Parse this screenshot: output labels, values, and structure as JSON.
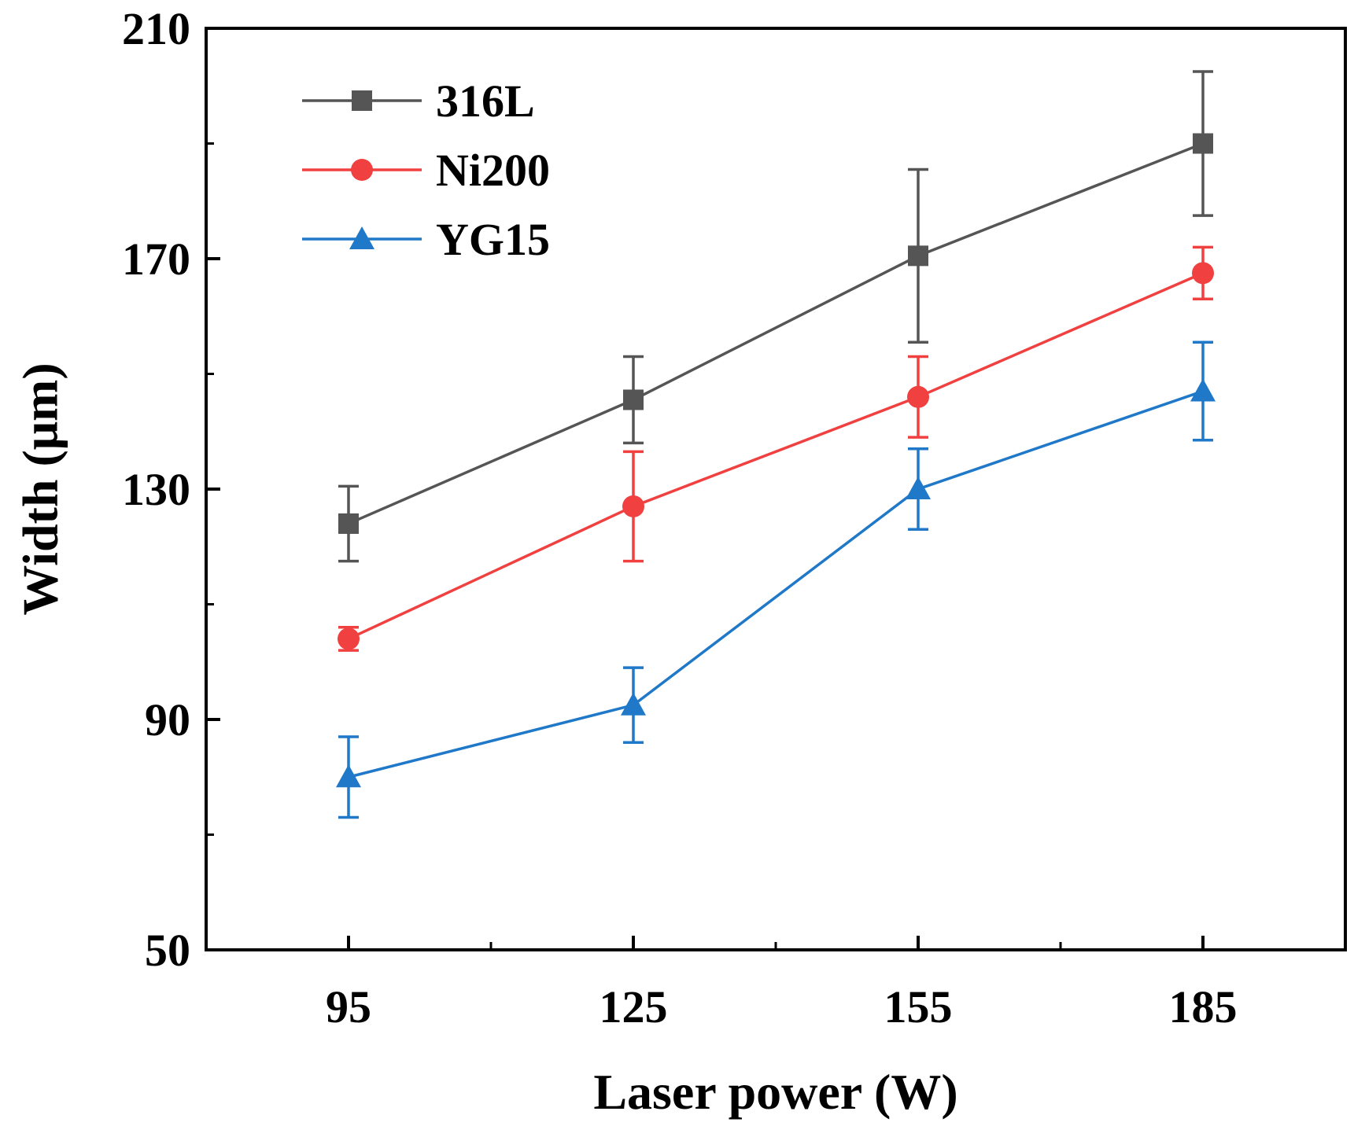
{
  "chart_data": {
    "type": "line",
    "xlabel": "Laser power (W)",
    "ylabel": "Width (μm)",
    "x": [
      95,
      125,
      155,
      185
    ],
    "xticks": [
      "95",
      "125",
      "155",
      "185"
    ],
    "yticks": [
      "50",
      "90",
      "130",
      "170",
      "210"
    ],
    "xlim": [
      80,
      200
    ],
    "ylim": [
      50,
      210
    ],
    "legend_position": "top-left",
    "series": [
      {
        "name": "316L",
        "color": "#555555",
        "marker": "square",
        "values": [
          124,
          145.5,
          170.5,
          190
        ],
        "errors": [
          6.5,
          7.5,
          15,
          12.5
        ]
      },
      {
        "name": "Ni200",
        "color": "#f04040",
        "marker": "circle",
        "values": [
          104,
          127,
          146,
          167.5
        ],
        "errors": [
          2,
          9.5,
          7,
          4.5
        ]
      },
      {
        "name": "YG15",
        "color": "#1f78c8",
        "marker": "triangle",
        "values": [
          80,
          92.5,
          130,
          147
        ],
        "errors": [
          7,
          6.5,
          7,
          8.5
        ]
      }
    ]
  }
}
